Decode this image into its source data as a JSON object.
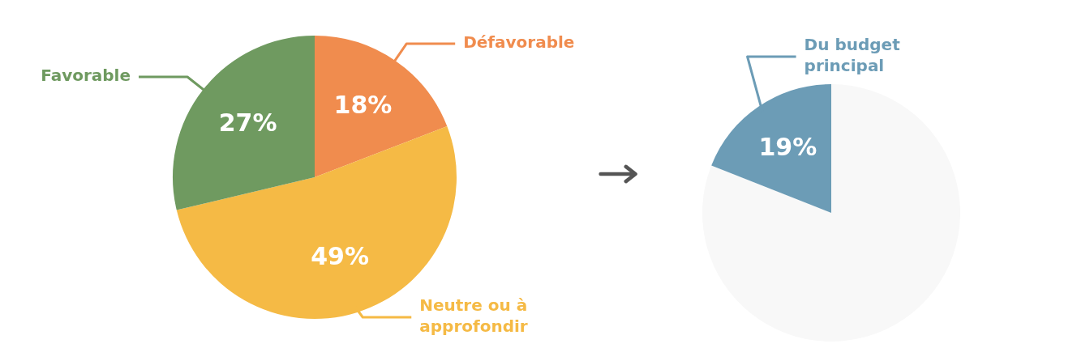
{
  "chart_data": [
    {
      "type": "pie",
      "categories": [
        "Défavorable",
        "Neutre ou à approfondir",
        "Favorable"
      ],
      "values": [
        18,
        49,
        27
      ],
      "colors": [
        "#f08c4e",
        "#f5ba45",
        "#6f9a60"
      ],
      "value_labels": [
        "18%",
        "49%",
        "27%"
      ],
      "legend": false
    },
    {
      "type": "pie",
      "categories": [
        null,
        "Du budget principal"
      ],
      "values": [
        81,
        19
      ],
      "colors": [
        "#f8f8f8",
        "#6c9cb6"
      ],
      "value_labels": [
        null,
        "19%"
      ],
      "legend": false
    }
  ]
}
